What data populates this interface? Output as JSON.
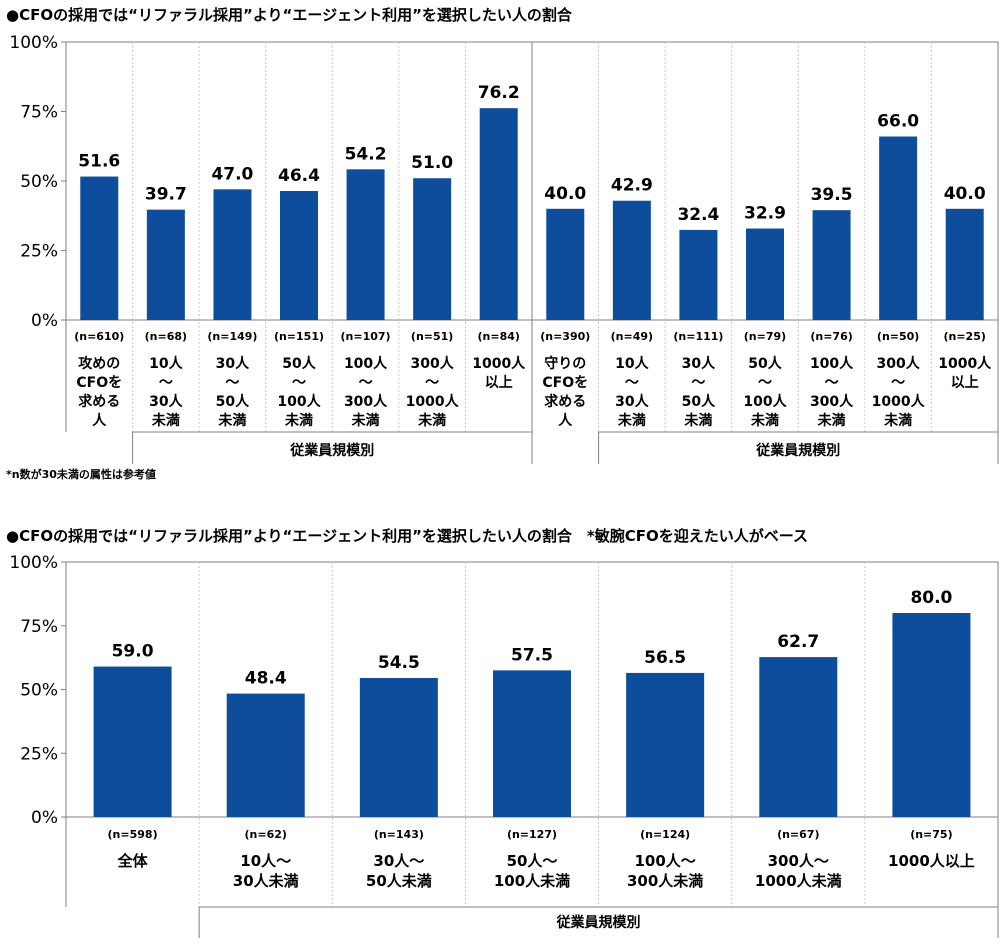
{
  "chart_data": [
    {
      "type": "bar",
      "title": "●CFOの採用では“リファラル採用”より“エージェント利用”を選択したい人の割合",
      "ylim": [
        0,
        100
      ],
      "yticks": [
        "0%",
        "25%",
        "50%",
        "75%",
        "100%"
      ],
      "color": "#0e4c9c",
      "categories": [
        {
          "lines": [
            "攻めの",
            "CFOを",
            "求める",
            "人"
          ],
          "n": "(n=610)",
          "value": 51.6,
          "label": "51.6"
        },
        {
          "lines": [
            "10人",
            "～",
            "30人",
            "未満"
          ],
          "n": "(n=68)",
          "value": 39.7,
          "label": "39.7"
        },
        {
          "lines": [
            "30人",
            "～",
            "50人",
            "未満"
          ],
          "n": "(n=149)",
          "value": 47.0,
          "label": "47.0"
        },
        {
          "lines": [
            "50人",
            "～",
            "100人",
            "未満"
          ],
          "n": "(n=151)",
          "value": 46.4,
          "label": "46.4"
        },
        {
          "lines": [
            "100人",
            "～",
            "300人",
            "未満"
          ],
          "n": "(n=107)",
          "value": 54.2,
          "label": "54.2"
        },
        {
          "lines": [
            "300人",
            "～",
            "1000人",
            "未満"
          ],
          "n": "(n=51)",
          "value": 51.0,
          "label": "51.0"
        },
        {
          "lines": [
            "1000人",
            "以上"
          ],
          "n": "(n=84)",
          "value": 76.2,
          "label": "76.2"
        },
        {
          "lines": [
            "守りの",
            "CFOを",
            "求める",
            "人"
          ],
          "n": "(n=390)",
          "value": 40.0,
          "label": "40.0"
        },
        {
          "lines": [
            "10人",
            "～",
            "30人",
            "未満"
          ],
          "n": "(n=49)",
          "value": 42.9,
          "label": "42.9"
        },
        {
          "lines": [
            "30人",
            "～",
            "50人",
            "未満"
          ],
          "n": "(n=111)",
          "value": 32.4,
          "label": "32.4"
        },
        {
          "lines": [
            "50人",
            "～",
            "100人",
            "未満"
          ],
          "n": "(n=79)",
          "value": 32.9,
          "label": "32.9"
        },
        {
          "lines": [
            "100人",
            "～",
            "300人",
            "未満"
          ],
          "n": "(n=76)",
          "value": 39.5,
          "label": "39.5"
        },
        {
          "lines": [
            "300人",
            "～",
            "1000人",
            "未満"
          ],
          "n": "(n=50)",
          "value": 66.0,
          "label": "66.0"
        },
        {
          "lines": [
            "1000人",
            "以上"
          ],
          "n": "(n=25)",
          "value": 40.0,
          "label": "40.0"
        }
      ],
      "groups": [
        "従業員規模別",
        "従業員規模別"
      ],
      "note": "*n数が30未満の属性は参考値"
    },
    {
      "type": "bar",
      "title": "●CFOの採用では“リファラル採用”より“エージェント利用”を選択したい人の割合　*敏腕CFOを迎えたい人がベース",
      "ylim": [
        0,
        100
      ],
      "yticks": [
        "0%",
        "25%",
        "50%",
        "75%",
        "100%"
      ],
      "color": "#0e4c9c",
      "categories": [
        {
          "lines": [
            "全体"
          ],
          "n": "(n=598)",
          "value": 59.0,
          "label": "59.0"
        },
        {
          "lines": [
            "10人～",
            "30人未満"
          ],
          "n": "(n=62)",
          "value": 48.4,
          "label": "48.4"
        },
        {
          "lines": [
            "30人～",
            "50人未満"
          ],
          "n": "(n=143)",
          "value": 54.5,
          "label": "54.5"
        },
        {
          "lines": [
            "50人～",
            "100人未満"
          ],
          "n": "(n=127)",
          "value": 57.5,
          "label": "57.5"
        },
        {
          "lines": [
            "100人～",
            "300人未満"
          ],
          "n": "(n=124)",
          "value": 56.5,
          "label": "56.5"
        },
        {
          "lines": [
            "300人～",
            "1000人未満"
          ],
          "n": "(n=67)",
          "value": 62.7,
          "label": "62.7"
        },
        {
          "lines": [
            "1000人以上"
          ],
          "n": "(n=75)",
          "value": 80.0,
          "label": "80.0"
        }
      ],
      "groups": [
        "従業員規模別"
      ]
    }
  ]
}
